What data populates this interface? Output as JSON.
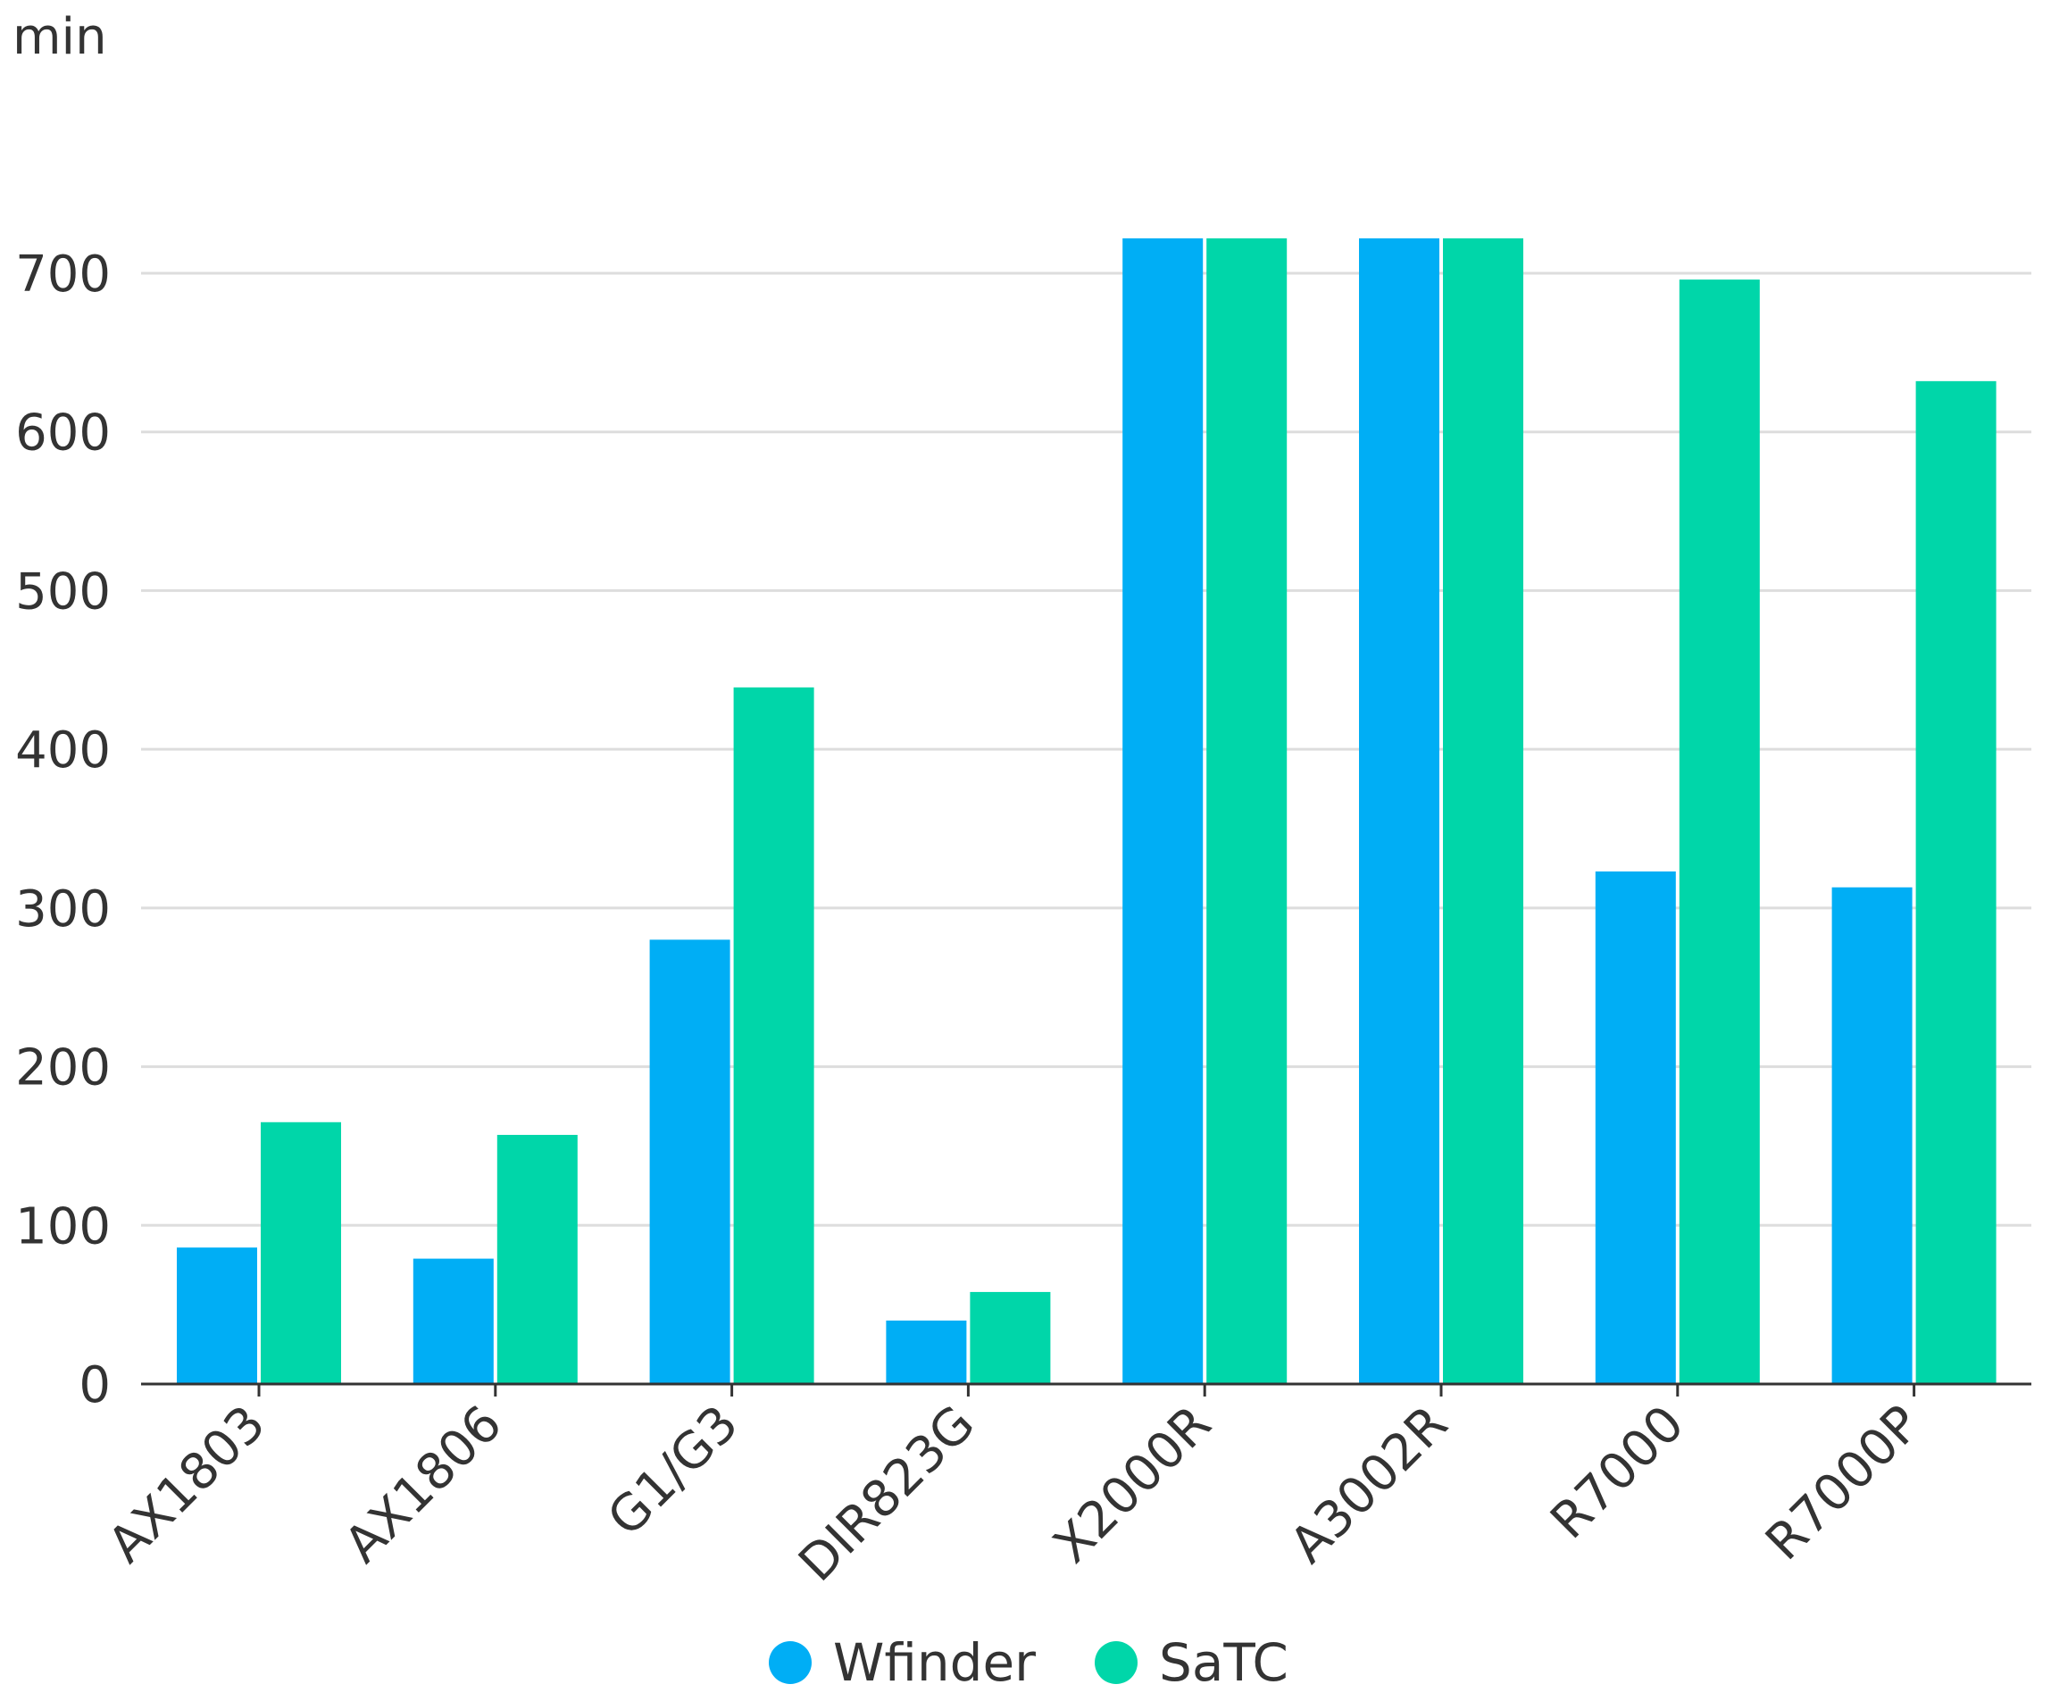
{
  "chart_data": {
    "type": "bar",
    "ylabel": "min",
    "ylim": [
      0,
      700
    ],
    "yticks": [
      0,
      100,
      200,
      300,
      400,
      500,
      600,
      700
    ],
    "categories": [
      "AX1803",
      "AX1806",
      "G1/G3",
      "DIR823G",
      "X2000R",
      "A3002R",
      "R7000",
      "R7000P"
    ],
    "series": [
      {
        "name": "Wfinder",
        "color": "#00AEF5",
        "values": [
          86,
          79,
          280,
          40,
          722,
          722,
          323,
          313
        ]
      },
      {
        "name": "SaTC",
        "color": "#00D6A9",
        "values": [
          165,
          157,
          439,
          58,
          722,
          722,
          696,
          632
        ]
      }
    ],
    "grid": true,
    "legend_position": "bottom-center"
  }
}
